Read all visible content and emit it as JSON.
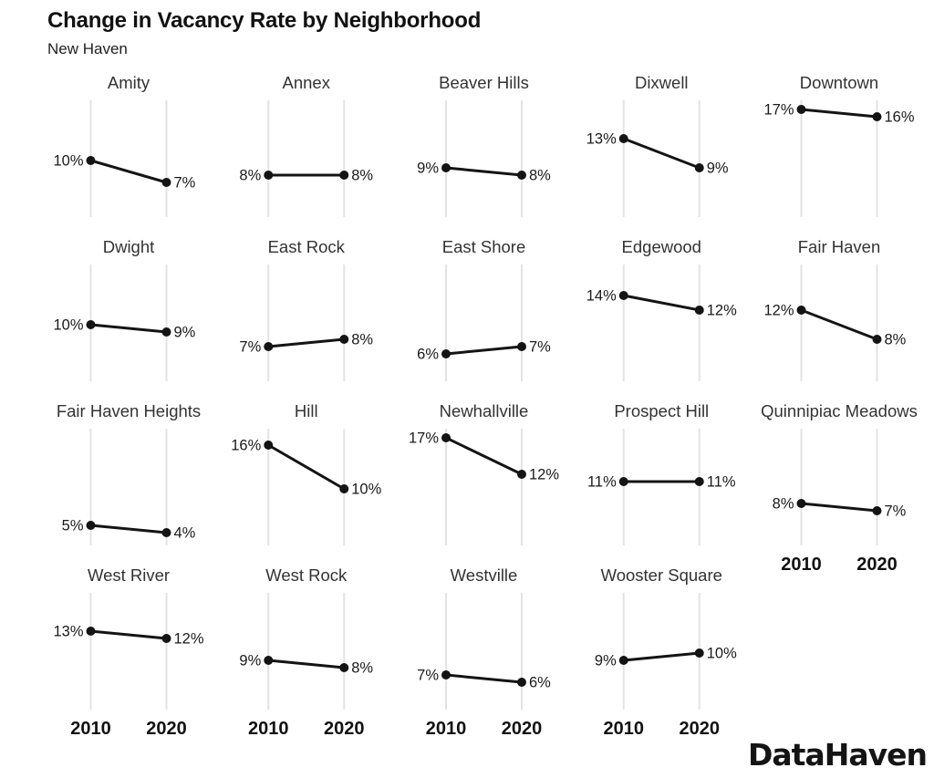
{
  "header": {
    "title": "Change in Vacancy Rate by Neighborhood",
    "subtitle": "New Haven"
  },
  "footer": {
    "logo": "DataHaven"
  },
  "colors": {
    "background": "#ffffff",
    "line": "#141414",
    "point": "#141414",
    "gridline": "#e3e3e3",
    "panel_title": "#333333",
    "value_label": "#1a1a1a",
    "axis_label": "#111111"
  },
  "chart_data": {
    "type": "line",
    "variant": "slope-chart-small-multiples",
    "title": "Change in Vacancy Rate by Neighborhood",
    "subtitle": "New Haven",
    "x_categories": [
      "2010",
      "2020"
    ],
    "value_format": "percent",
    "grid": "vertical-gridlines-only",
    "legend": "none",
    "y_axis_visible": false,
    "ylim_implied": [
      2.3,
      18.3
    ],
    "columns": 5,
    "rows": 4,
    "panels": [
      {
        "name": "Amity",
        "values": [
          10,
          7
        ],
        "labels": [
          "10%",
          "7%"
        ],
        "show_x_axis": false
      },
      {
        "name": "Annex",
        "values": [
          8,
          8
        ],
        "labels": [
          "8%",
          "8%"
        ],
        "show_x_axis": false
      },
      {
        "name": "Beaver Hills",
        "values": [
          9,
          8
        ],
        "labels": [
          "9%",
          "8%"
        ],
        "show_x_axis": false
      },
      {
        "name": "Dixwell",
        "values": [
          13,
          9
        ],
        "labels": [
          "13%",
          "9%"
        ],
        "show_x_axis": false
      },
      {
        "name": "Downtown",
        "values": [
          17,
          16
        ],
        "labels": [
          "17%",
          "16%"
        ],
        "show_x_axis": false
      },
      {
        "name": "Dwight",
        "values": [
          10,
          9
        ],
        "labels": [
          "10%",
          "9%"
        ],
        "show_x_axis": false
      },
      {
        "name": "East Rock",
        "values": [
          7,
          8
        ],
        "labels": [
          "7%",
          "8%"
        ],
        "show_x_axis": false
      },
      {
        "name": "East Shore",
        "values": [
          6,
          7
        ],
        "labels": [
          "6%",
          "7%"
        ],
        "show_x_axis": false
      },
      {
        "name": "Edgewood",
        "values": [
          14,
          12
        ],
        "labels": [
          "14%",
          "12%"
        ],
        "show_x_axis": false
      },
      {
        "name": "Fair Haven",
        "values": [
          12,
          8
        ],
        "labels": [
          "12%",
          "8%"
        ],
        "show_x_axis": false
      },
      {
        "name": "Fair Haven Heights",
        "values": [
          5,
          4
        ],
        "labels": [
          "5%",
          "4%"
        ],
        "show_x_axis": false
      },
      {
        "name": "Hill",
        "values": [
          16,
          10
        ],
        "labels": [
          "16%",
          "10%"
        ],
        "show_x_axis": false
      },
      {
        "name": "Newhallville",
        "values": [
          17,
          12
        ],
        "labels": [
          "17%",
          "12%"
        ],
        "show_x_axis": false
      },
      {
        "name": "Prospect Hill",
        "values": [
          11,
          11
        ],
        "labels": [
          "11%",
          "11%"
        ],
        "show_x_axis": false
      },
      {
        "name": "Quinnipiac Meadows",
        "values": [
          8,
          7
        ],
        "labels": [
          "8%",
          "7%"
        ],
        "show_x_axis": true
      },
      {
        "name": "West River",
        "values": [
          13,
          12
        ],
        "labels": [
          "13%",
          "12%"
        ],
        "show_x_axis": true
      },
      {
        "name": "West Rock",
        "values": [
          9,
          8
        ],
        "labels": [
          "9%",
          "8%"
        ],
        "show_x_axis": true
      },
      {
        "name": "Westville",
        "values": [
          7,
          6
        ],
        "labels": [
          "7%",
          "6%"
        ],
        "show_x_axis": true
      },
      {
        "name": "Wooster Square",
        "values": [
          9,
          10
        ],
        "labels": [
          "9%",
          "10%"
        ],
        "show_x_axis": true
      }
    ]
  }
}
